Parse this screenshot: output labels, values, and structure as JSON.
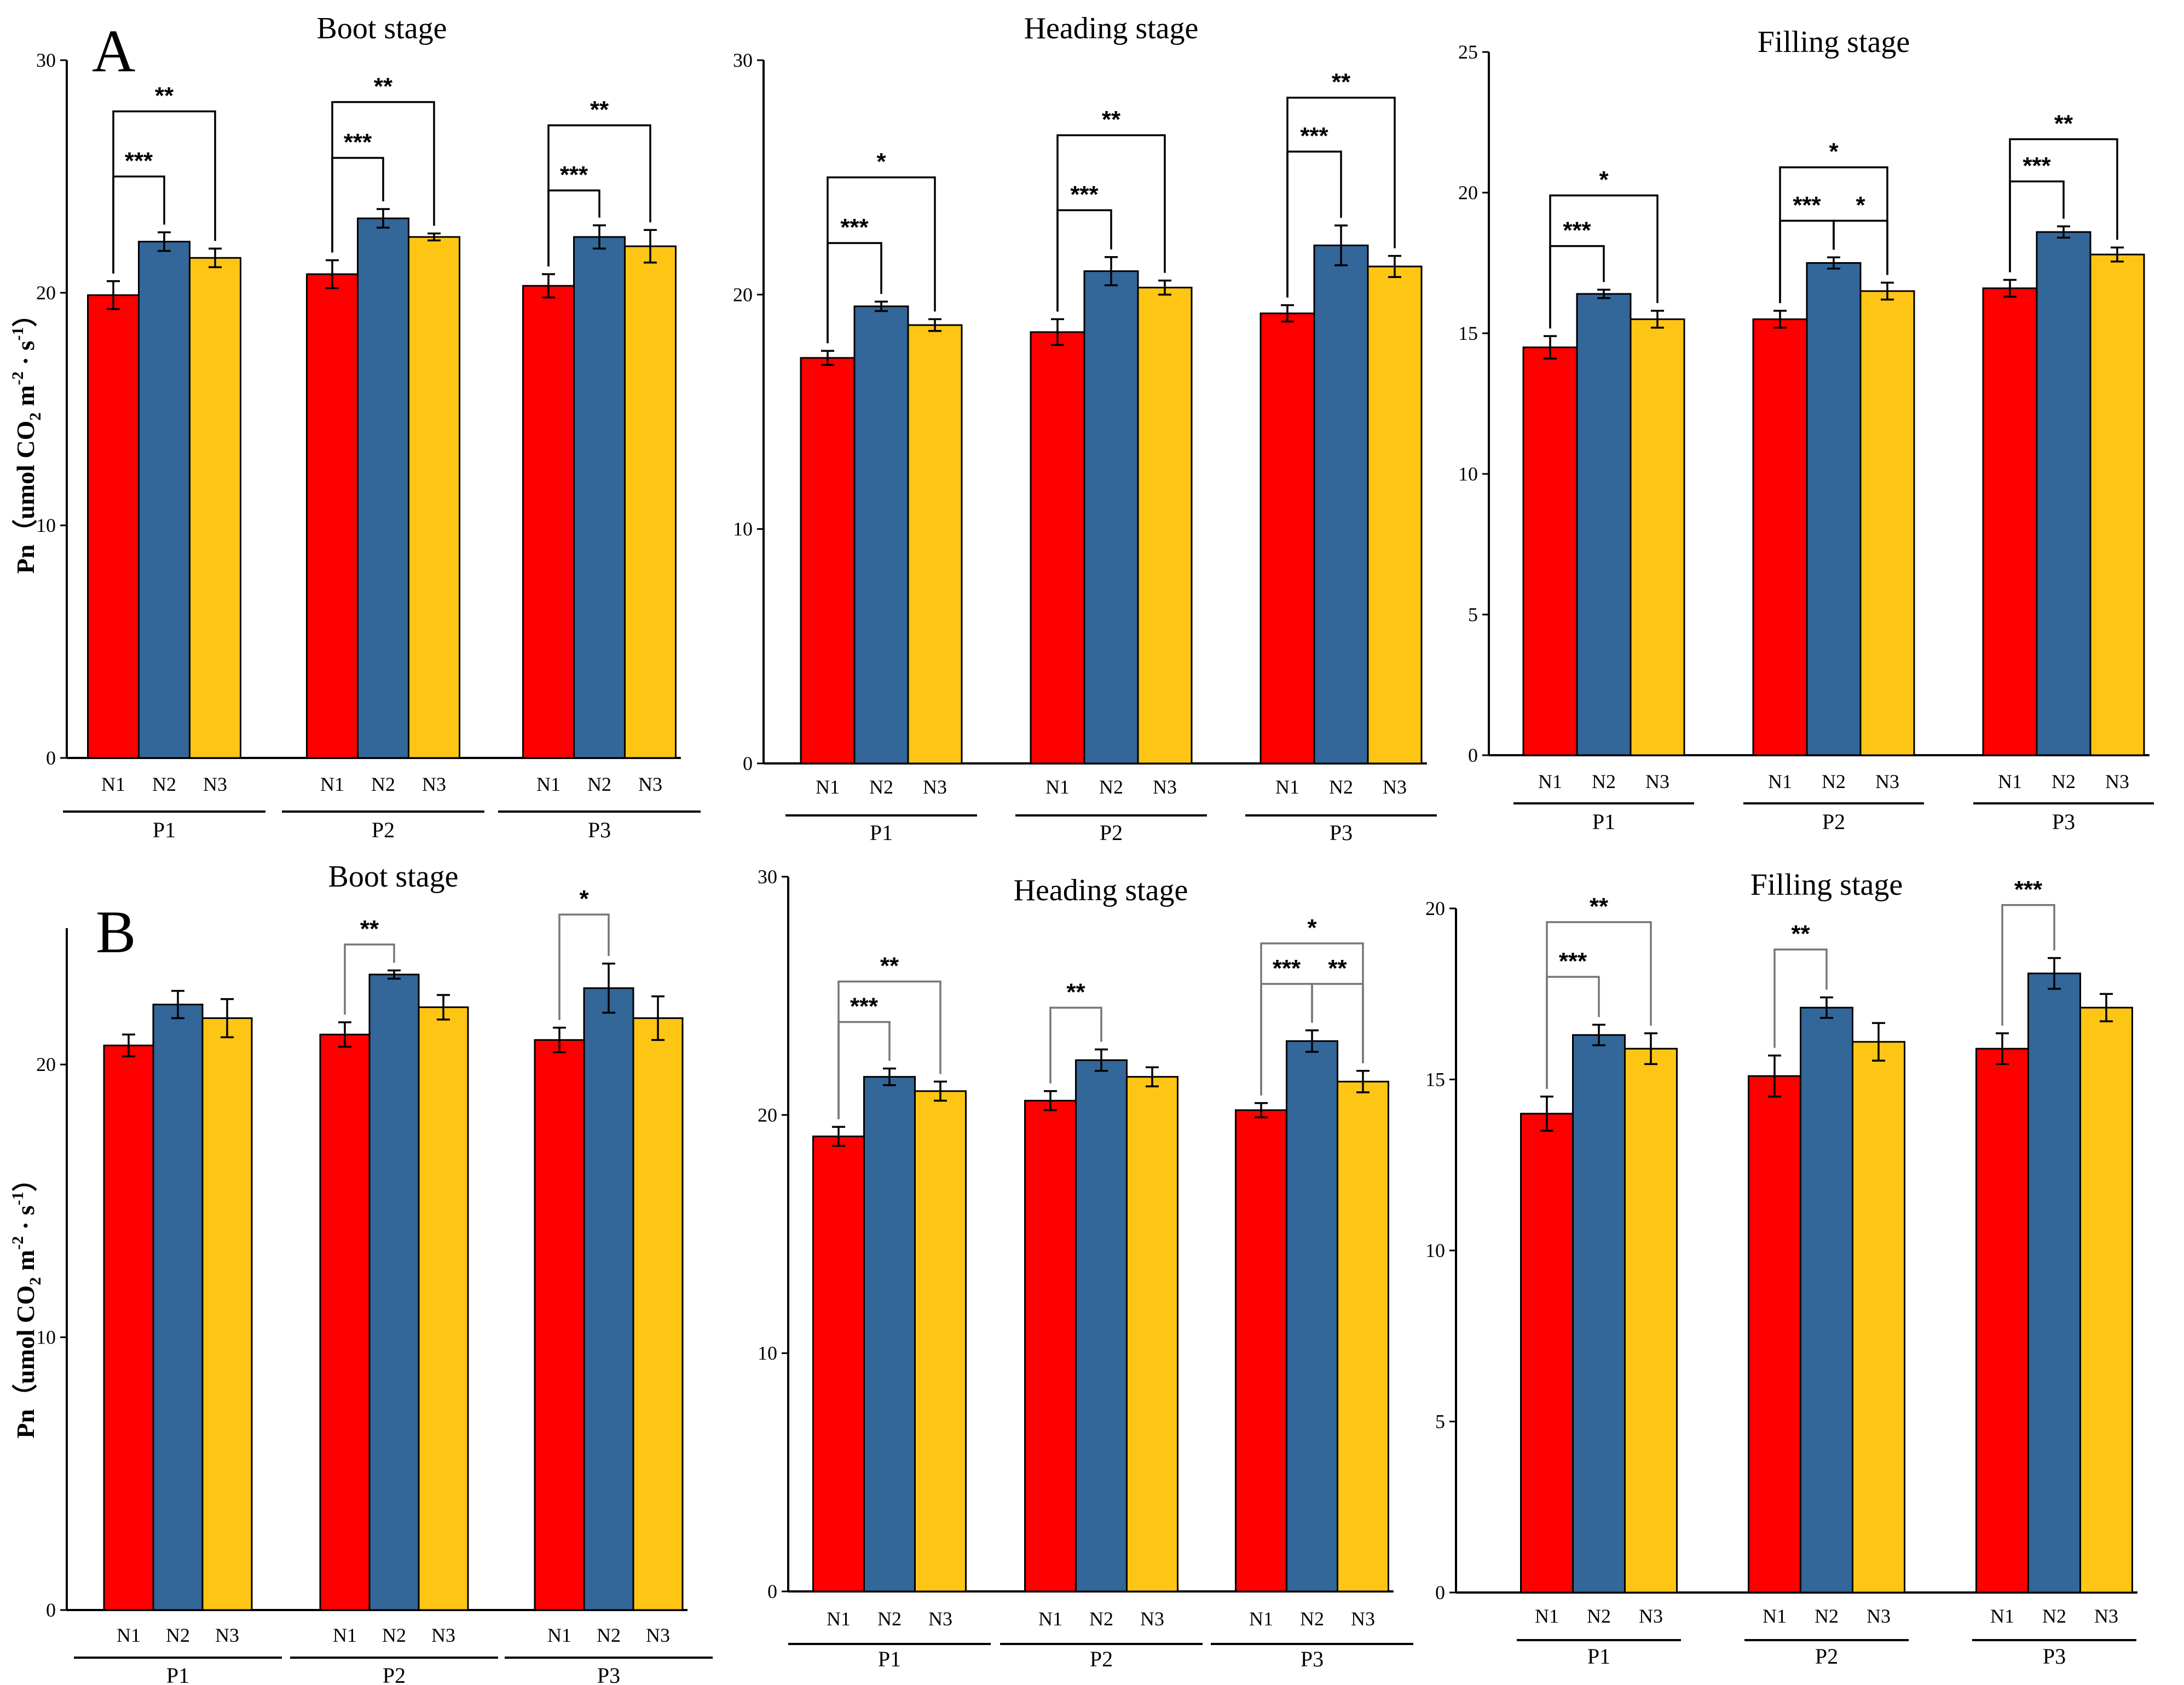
{
  "figure": {
    "panel_labels": [
      "A",
      "B"
    ],
    "y_axis_label": {
      "prefix": "Pn（umol CO",
      "sub": "2",
      "mid1": " m",
      "sup1": "-2",
      "mid2": " · s",
      "sup2": "-1",
      "suffix": "）"
    },
    "colors": {
      "N1": "#fe0000",
      "N2": "#336699",
      "N3": "#fec515"
    }
  },
  "chart_data": [
    {
      "type": "bar",
      "panel": "A",
      "title": "Boot stage",
      "ylim": [
        0,
        30
      ],
      "yticks": [
        0,
        10,
        20,
        30
      ],
      "groups": [
        "P1",
        "P2",
        "P3"
      ],
      "series_names": [
        "N1",
        "N2",
        "N3"
      ],
      "values": [
        [
          19.9,
          22.2,
          21.5
        ],
        [
          20.8,
          23.2,
          22.4
        ],
        [
          20.3,
          22.4,
          22.0
        ]
      ],
      "errors": [
        [
          0.6,
          0.4,
          0.4
        ],
        [
          0.6,
          0.4,
          0.15
        ],
        [
          0.5,
          0.5,
          0.7
        ]
      ],
      "significance": [
        {
          "group": 0,
          "from": 0,
          "to": 1,
          "label": "***",
          "y": 25.0
        },
        {
          "group": 0,
          "from": 0,
          "to": 2,
          "label": "**",
          "y": 27.8
        },
        {
          "group": 1,
          "from": 0,
          "to": 1,
          "label": "***",
          "y": 25.8
        },
        {
          "group": 1,
          "from": 0,
          "to": 2,
          "label": "**",
          "y": 28.2
        },
        {
          "group": 2,
          "from": 0,
          "to": 1,
          "label": "***",
          "y": 24.4
        },
        {
          "group": 2,
          "from": 0,
          "to": 2,
          "label": "**",
          "y": 27.2
        }
      ]
    },
    {
      "type": "bar",
      "panel": "A",
      "title": "Heading stage",
      "ylim": [
        0,
        30
      ],
      "yticks": [
        0,
        10,
        20,
        30
      ],
      "groups": [
        "P1",
        "P2",
        "P3"
      ],
      "series_names": [
        "N1",
        "N2",
        "N3"
      ],
      "values": [
        [
          17.3,
          19.5,
          18.7
        ],
        [
          18.4,
          21.0,
          20.3
        ],
        [
          19.2,
          22.1,
          21.2
        ]
      ],
      "errors": [
        [
          0.3,
          0.2,
          0.25
        ],
        [
          0.55,
          0.6,
          0.3
        ],
        [
          0.35,
          0.85,
          0.45
        ]
      ],
      "significance": [
        {
          "group": 0,
          "from": 0,
          "to": 1,
          "label": "***",
          "y": 22.2
        },
        {
          "group": 0,
          "from": 0,
          "to": 2,
          "label": "*",
          "y": 25.0
        },
        {
          "group": 1,
          "from": 0,
          "to": 1,
          "label": "***",
          "y": 23.6
        },
        {
          "group": 1,
          "from": 0,
          "to": 2,
          "label": "**",
          "y": 26.8
        },
        {
          "group": 2,
          "from": 0,
          "to": 1,
          "label": "***",
          "y": 26.1
        },
        {
          "group": 2,
          "from": 0,
          "to": 2,
          "label": "**",
          "y": 28.4
        }
      ]
    },
    {
      "type": "bar",
      "panel": "A",
      "title": "Filling stage",
      "ylim": [
        0,
        25
      ],
      "yticks": [
        0,
        5,
        10,
        15,
        20,
        25
      ],
      "groups": [
        "P1",
        "P2",
        "P3"
      ],
      "series_names": [
        "N1",
        "N2",
        "N3"
      ],
      "values": [
        [
          14.5,
          16.4,
          15.5
        ],
        [
          15.5,
          17.5,
          16.5
        ],
        [
          16.6,
          18.6,
          17.8
        ]
      ],
      "errors": [
        [
          0.4,
          0.15,
          0.3
        ],
        [
          0.3,
          0.2,
          0.3
        ],
        [
          0.3,
          0.2,
          0.25
        ]
      ],
      "significance": [
        {
          "group": 0,
          "from": 0,
          "to": 1,
          "label": "***",
          "y": 18.1
        },
        {
          "group": 0,
          "from": 0,
          "to": 2,
          "label": "*",
          "y": 19.9
        },
        {
          "group": 1,
          "from": 0,
          "to": 1,
          "label": "***",
          "y": 19.0
        },
        {
          "group": 1,
          "from": 1,
          "to": 2,
          "label": "*",
          "y": 19.0
        },
        {
          "group": 1,
          "from": 0,
          "to": 2,
          "label": "*",
          "y": 20.9
        },
        {
          "group": 2,
          "from": 0,
          "to": 1,
          "label": "***",
          "y": 20.4
        },
        {
          "group": 2,
          "from": 0,
          "to": 2,
          "label": "**",
          "y": 21.9
        }
      ]
    },
    {
      "type": "bar",
      "panel": "B",
      "title": "Boot stage",
      "ylim": [
        0,
        25
      ],
      "yticks": [
        0,
        10,
        20
      ],
      "groups": [
        "P1",
        "P2",
        "P3"
      ],
      "series_names": [
        "N1",
        "N2",
        "N3"
      ],
      "values": [
        [
          20.7,
          22.2,
          21.7
        ],
        [
          21.1,
          23.3,
          22.1
        ],
        [
          20.9,
          22.8,
          21.7
        ]
      ],
      "errors": [
        [
          0.4,
          0.5,
          0.7
        ],
        [
          0.45,
          0.15,
          0.45
        ],
        [
          0.45,
          0.9,
          0.8
        ]
      ],
      "significance": [
        {
          "group": 1,
          "from": 0,
          "to": 1,
          "label": "**",
          "y": 24.4,
          "grey": true
        },
        {
          "group": 2,
          "from": 0,
          "to": 1,
          "label": "*",
          "y": 25.5,
          "grey": true
        }
      ]
    },
    {
      "type": "bar",
      "panel": "B",
      "title": "Heading stage",
      "ylim": [
        0,
        30
      ],
      "yticks": [
        0,
        10,
        20,
        30
      ],
      "groups": [
        "P1",
        "P2",
        "P3"
      ],
      "series_names": [
        "N1",
        "N2",
        "N3"
      ],
      "values": [
        [
          19.1,
          21.6,
          21.0
        ],
        [
          20.6,
          22.3,
          21.6
        ],
        [
          20.2,
          23.1,
          21.4
        ]
      ],
      "errors": [
        [
          0.4,
          0.35,
          0.4
        ],
        [
          0.4,
          0.45,
          0.4
        ],
        [
          0.3,
          0.45,
          0.45
        ]
      ],
      "significance": [
        {
          "group": 0,
          "from": 0,
          "to": 1,
          "label": "***",
          "y": 23.9,
          "grey": true
        },
        {
          "group": 0,
          "from": 0,
          "to": 2,
          "label": "**",
          "y": 25.6,
          "grey": true
        },
        {
          "group": 1,
          "from": 0,
          "to": 1,
          "label": "**",
          "y": 24.5,
          "grey": true
        },
        {
          "group": 2,
          "from": 0,
          "to": 1,
          "label": "***",
          "y": 25.5,
          "grey": true
        },
        {
          "group": 2,
          "from": 1,
          "to": 2,
          "label": "**",
          "y": 25.5,
          "grey": true
        },
        {
          "group": 2,
          "from": 0,
          "to": 2,
          "label": "*",
          "y": 27.2,
          "grey": true
        }
      ]
    },
    {
      "type": "bar",
      "panel": "B",
      "title": "Filling stage",
      "ylim": [
        0,
        20
      ],
      "yticks": [
        0,
        5,
        10,
        15,
        20
      ],
      "groups": [
        "P1",
        "P2",
        "P3"
      ],
      "series_names": [
        "N1",
        "N2",
        "N3"
      ],
      "values": [
        [
          14.0,
          16.3,
          15.9
        ],
        [
          15.1,
          17.1,
          16.1
        ],
        [
          15.9,
          18.1,
          17.1
        ]
      ],
      "errors": [
        [
          0.5,
          0.3,
          0.45
        ],
        [
          0.6,
          0.3,
          0.55
        ],
        [
          0.45,
          0.45,
          0.4
        ]
      ],
      "significance": [
        {
          "group": 0,
          "from": 0,
          "to": 1,
          "label": "***",
          "y": 18.0,
          "grey": true
        },
        {
          "group": 0,
          "from": 0,
          "to": 2,
          "label": "**",
          "y": 19.6,
          "grey": true
        },
        {
          "group": 1,
          "from": 0,
          "to": 1,
          "label": "**",
          "y": 18.8,
          "grey": true
        },
        {
          "group": 2,
          "from": 0,
          "to": 1,
          "label": "***",
          "y": 20.1,
          "grey": true
        }
      ]
    }
  ]
}
